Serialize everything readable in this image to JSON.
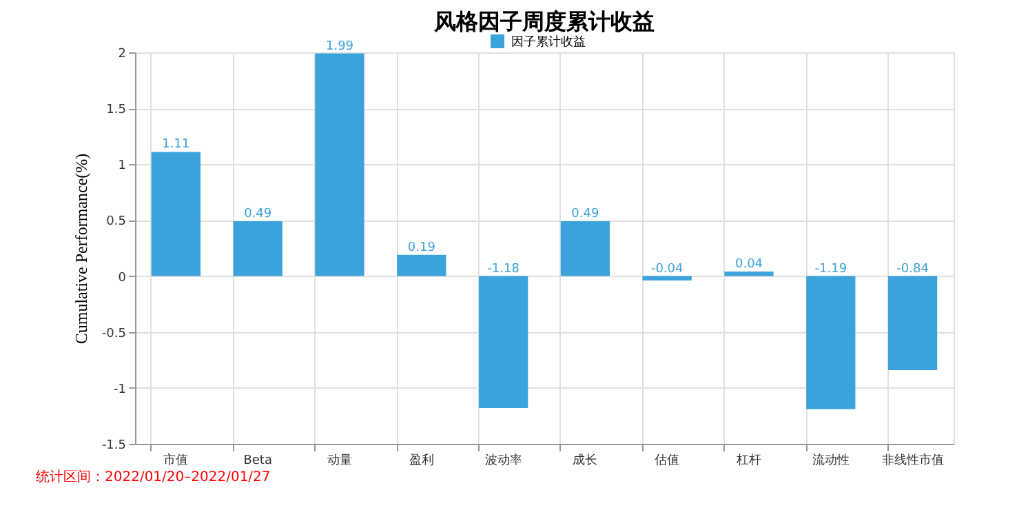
{
  "chart_data": {
    "type": "bar",
    "title": "风格因子周度累计收益",
    "ylabel": "Cumulative Performance(%)",
    "categories": [
      "市值",
      "Beta",
      "动量",
      "盈利",
      "波动率",
      "成长",
      "估值",
      "杠杆",
      "流动性",
      "非线性市值"
    ],
    "series": [
      {
        "name": "因子累计收益",
        "color": "#3ba3db",
        "values": [
          1.11,
          0.49,
          1.99,
          0.19,
          -1.18,
          0.49,
          -0.04,
          0.04,
          -1.19,
          -0.84
        ]
      }
    ],
    "ylim": [
      -1.5,
      2
    ],
    "yticks": [
      -1.5,
      -1,
      -0.5,
      0,
      0.5,
      1,
      1.5,
      2
    ],
    "grid": true,
    "legend": "top",
    "data_labels": true,
    "annotations": [
      "统计区间：2022/01/20–2022/01/27"
    ]
  }
}
